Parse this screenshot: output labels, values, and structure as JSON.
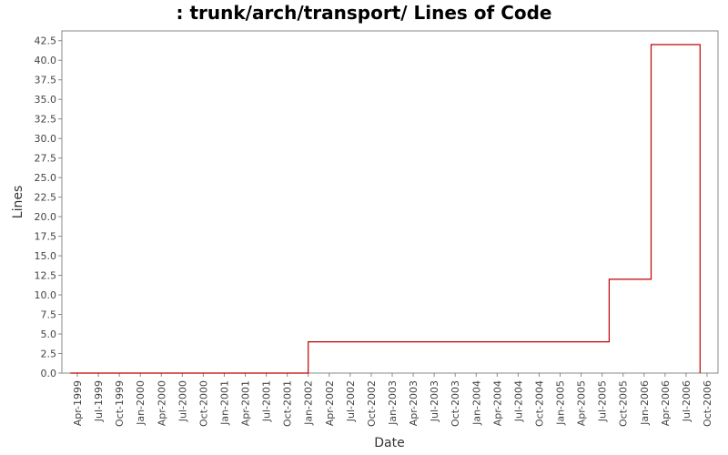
{
  "chart_data": {
    "type": "line",
    "title": ": trunk/arch/transport/ Lines of Code",
    "xlabel": "Date",
    "ylabel": "Lines",
    "ylim": [
      0,
      43.75
    ],
    "y_ticks": [
      "0.0",
      "2.5",
      "5.0",
      "7.5",
      "10.0",
      "12.5",
      "15.0",
      "17.5",
      "20.0",
      "22.5",
      "25.0",
      "27.5",
      "30.0",
      "32.5",
      "35.0",
      "37.5",
      "40.0",
      "42.5"
    ],
    "x_ticks": [
      "Apr-1999",
      "Jul-1999",
      "Oct-1999",
      "Jan-2000",
      "Apr-2000",
      "Jul-2000",
      "Oct-2000",
      "Jan-2001",
      "Apr-2001",
      "Jul-2001",
      "Oct-2001",
      "Jan-2002",
      "Apr-2002",
      "Jul-2002",
      "Oct-2002",
      "Jan-2003",
      "Apr-2003",
      "Jul-2003",
      "Oct-2003",
      "Jan-2004",
      "Apr-2004",
      "Jul-2004",
      "Oct-2004",
      "Jan-2005",
      "Apr-2005",
      "Jul-2005",
      "Oct-2005",
      "Jan-2006",
      "Apr-2006",
      "Jul-2006",
      "Oct-2006"
    ],
    "xlim": [
      "1999-04",
      "2006-12"
    ],
    "series": [
      {
        "color": "#c00000",
        "step": true,
        "points": [
          [
            "1999-03",
            0
          ],
          [
            "2002-01",
            0
          ],
          [
            "2002-01",
            4
          ],
          [
            "2005-08",
            4
          ],
          [
            "2005-08",
            12
          ],
          [
            "2006-02",
            12
          ],
          [
            "2006-02",
            42
          ],
          [
            "2006-09",
            42
          ],
          [
            "2006-09",
            0
          ]
        ]
      }
    ],
    "grid": false,
    "legend": "none"
  }
}
